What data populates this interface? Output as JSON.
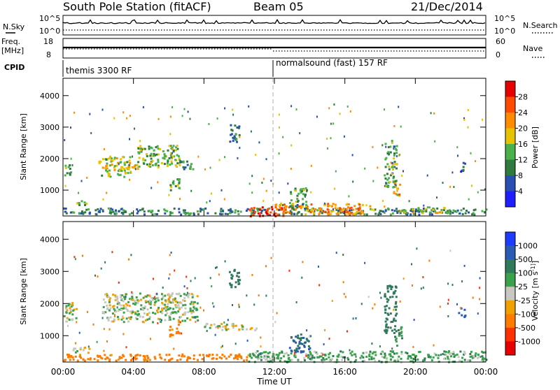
{
  "header": {
    "title": "South Pole Station (fitACF)",
    "beam": "Beam 05",
    "date": "21/Dec/2014"
  },
  "nsky_panel": {
    "left_label": "N.Sky",
    "left_ticks": [
      "10^5",
      "10^0"
    ],
    "right_label": "N.Search",
    "right_ticks": [
      "10^5",
      "10^0"
    ]
  },
  "freq_panel": {
    "left_label_1": "Freq.",
    "left_label_2": "[MHz]",
    "left_ticks": [
      "18",
      "8"
    ],
    "right_label": "Nave",
    "right_ticks": [
      "60",
      "0"
    ]
  },
  "cpid": {
    "label": "CPID",
    "segments": [
      {
        "text": "themis 3300 RF",
        "start_hour": 0
      },
      {
        "text": "normalsound (fast) 157 RF",
        "start_hour": 12
      }
    ]
  },
  "chart_data": [
    {
      "type": "heatmap",
      "quantity": "Power",
      "xlabel": "",
      "ylabel": "Slant Range [km]",
      "ylim": [
        180,
        4550
      ],
      "yticks": [
        1000,
        2000,
        3000,
        4000
      ],
      "xlim_hours": [
        0,
        24
      ],
      "colorbar": {
        "label": "Power [dB]",
        "ticks": [
          "4",
          "8",
          "12",
          "16",
          "20",
          "24",
          "28"
        ],
        "colors": [
          "#1e1eff",
          "#2a4fb4",
          "#2f7a3e",
          "#4ab04a",
          "#e6c200",
          "#ff8c00",
          "#ff4a00",
          "#e60000"
        ]
      },
      "echo_regions": [
        {
          "t0": 0.0,
          "t1": 0.4,
          "r0": 1450,
          "r1": 1900,
          "value": 12
        },
        {
          "t0": 0.6,
          "t1": 1.3,
          "r0": 500,
          "r1": 700,
          "value": 14
        },
        {
          "t0": 2.0,
          "t1": 3.8,
          "r0": 1450,
          "r1": 2100,
          "value": 16
        },
        {
          "t0": 3.6,
          "t1": 4.2,
          "r0": 1650,
          "r1": 1950,
          "value": 20
        },
        {
          "t0": 4.2,
          "t1": 6.6,
          "r0": 1750,
          "r1": 2450,
          "value": 14
        },
        {
          "t0": 6.0,
          "t1": 6.6,
          "r0": 1000,
          "r1": 1400,
          "value": 12
        },
        {
          "t0": 6.6,
          "t1": 7.4,
          "r0": 1650,
          "r1": 1950,
          "value": 10
        },
        {
          "t0": 9.4,
          "t1": 10.0,
          "r0": 2500,
          "r1": 3100,
          "value": 10
        },
        {
          "t0": 0.0,
          "t1": 24.0,
          "r0": 250,
          "r1": 450,
          "value": 10
        },
        {
          "t0": 10.5,
          "t1": 12.6,
          "r0": 200,
          "r1": 500,
          "value": 28
        },
        {
          "t0": 12.0,
          "t1": 17.5,
          "r0": 250,
          "r1": 600,
          "value": 22
        },
        {
          "t0": 12.8,
          "t1": 13.8,
          "r0": 450,
          "r1": 1100,
          "value": 12
        },
        {
          "t0": 18.2,
          "t1": 18.9,
          "r0": 1100,
          "r1": 2600,
          "value": 12
        },
        {
          "t0": 18.7,
          "t1": 19.1,
          "r0": 800,
          "r1": 1300,
          "value": 20
        },
        {
          "t0": 19.0,
          "t1": 22.0,
          "r0": 300,
          "r1": 500,
          "value": 16
        },
        {
          "t0": 22.4,
          "t1": 22.8,
          "r0": 1600,
          "r1": 1900,
          "value": 8
        }
      ]
    },
    {
      "type": "heatmap",
      "quantity": "Velocity",
      "xlabel": "Time UT",
      "ylabel": "Slant Range [km]",
      "ylim": [
        180,
        4550
      ],
      "yticks": [
        1000,
        2000,
        3000,
        4000
      ],
      "xlim_hours": [
        0,
        24
      ],
      "xticks": [
        "00:00",
        "04:00",
        "08:00",
        "12:00",
        "16:00",
        "20:00",
        "00:00"
      ],
      "colorbar": {
        "label": "Velocity [m s^-1]",
        "ticks": [
          "1000",
          "500",
          "100",
          "25",
          "-25",
          "-100",
          "-500",
          "-1000"
        ],
        "colors": [
          "#1e3cff",
          "#2a5ab4",
          "#2e7a5a",
          "#3aa24a",
          "#c8c8c0",
          "#f0a000",
          "#ff7a00",
          "#ff3000",
          "#e60000"
        ]
      },
      "echo_regions": [
        {
          "t0": 0.0,
          "t1": 0.8,
          "r0": 1450,
          "r1": 2050,
          "value": 0
        },
        {
          "t0": 0.5,
          "t1": 1.5,
          "r0": 500,
          "r1": 700,
          "value": 0
        },
        {
          "t0": 2.2,
          "t1": 7.6,
          "r0": 1450,
          "r1": 2350,
          "value": 10
        },
        {
          "t0": 6.0,
          "t1": 6.6,
          "r0": 1000,
          "r1": 1400,
          "value": -150
        },
        {
          "t0": 8.0,
          "t1": 11.0,
          "r0": 1200,
          "r1": 1400,
          "value": 0
        },
        {
          "t0": 9.4,
          "t1": 10.0,
          "r0": 2500,
          "r1": 3100,
          "value": 300
        },
        {
          "t0": 0.0,
          "t1": 10.5,
          "r0": 250,
          "r1": 450,
          "value": -150
        },
        {
          "t0": 10.5,
          "t1": 24.0,
          "r0": 200,
          "r1": 550,
          "value": 60
        },
        {
          "t0": 12.8,
          "t1": 14.0,
          "r0": 500,
          "r1": 1100,
          "value": 500
        },
        {
          "t0": 18.2,
          "t1": 18.9,
          "r0": 1100,
          "r1": 2600,
          "value": 200
        },
        {
          "t0": 18.7,
          "t1": 19.2,
          "r0": 700,
          "r1": 1300,
          "value": 100
        },
        {
          "t0": 22.4,
          "t1": 22.8,
          "r0": 1600,
          "r1": 1900,
          "value": 600
        }
      ]
    }
  ]
}
